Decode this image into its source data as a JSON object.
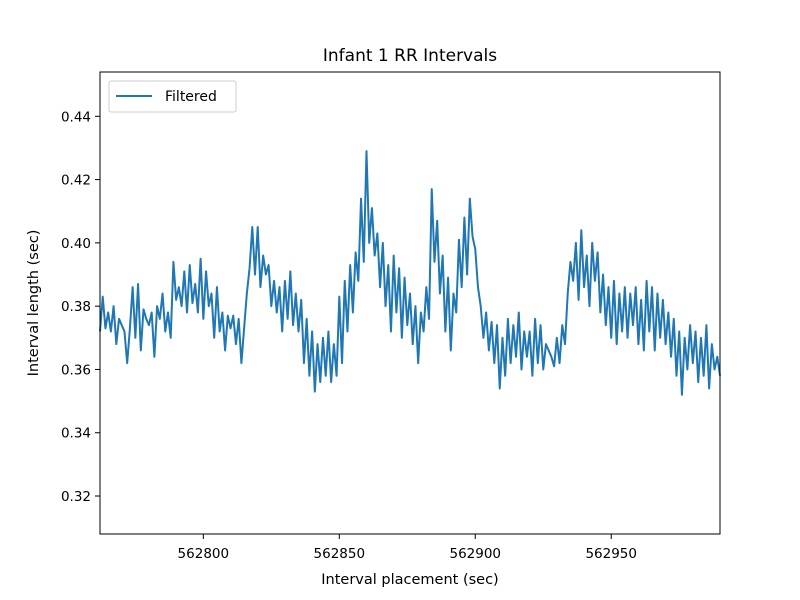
{
  "chart_data": {
    "type": "line",
    "title": "Infant 1 RR Intervals",
    "xlabel": "Interval placement (sec)",
    "ylabel": "Interval length (sec)",
    "xlim": [
      562762,
      562990
    ],
    "ylim": [
      0.308,
      0.454
    ],
    "xticks": [
      562800,
      562850,
      562900,
      562950
    ],
    "yticks": [
      0.32,
      0.34,
      0.36,
      0.38,
      0.4,
      0.42,
      0.44
    ],
    "grid": false,
    "legend_position": "top-left",
    "series": [
      {
        "name": "Filtered",
        "color": "#1f77b4",
        "points": [
          [
            562762,
            0.372
          ],
          [
            562763,
            0.383
          ],
          [
            562764,
            0.373
          ],
          [
            562765,
            0.378
          ],
          [
            562766,
            0.372
          ],
          [
            562767,
            0.38
          ],
          [
            562768,
            0.368
          ],
          [
            562769,
            0.376
          ],
          [
            562770,
            0.374
          ],
          [
            562771,
            0.372
          ],
          [
            562772,
            0.362
          ],
          [
            562773,
            0.373
          ],
          [
            562774,
            0.386
          ],
          [
            562775,
            0.37
          ],
          [
            562776,
            0.387
          ],
          [
            562777,
            0.366
          ],
          [
            562778,
            0.379
          ],
          [
            562779,
            0.376
          ],
          [
            562780,
            0.374
          ],
          [
            562781,
            0.378
          ],
          [
            562782,
            0.364
          ],
          [
            562783,
            0.38
          ],
          [
            562784,
            0.376
          ],
          [
            562785,
            0.384
          ],
          [
            562786,
            0.372
          ],
          [
            562787,
            0.378
          ],
          [
            562788,
            0.37
          ],
          [
            562789,
            0.394
          ],
          [
            562790,
            0.382
          ],
          [
            562791,
            0.386
          ],
          [
            562792,
            0.38
          ],
          [
            562793,
            0.391
          ],
          [
            562794,
            0.378
          ],
          [
            562795,
            0.393
          ],
          [
            562796,
            0.381
          ],
          [
            562797,
            0.387
          ],
          [
            562798,
            0.378
          ],
          [
            562799,
            0.395
          ],
          [
            562800,
            0.376
          ],
          [
            562801,
            0.391
          ],
          [
            562802,
            0.38
          ],
          [
            562803,
            0.384
          ],
          [
            562804,
            0.37
          ],
          [
            562805,
            0.386
          ],
          [
            562806,
            0.372
          ],
          [
            562807,
            0.378
          ],
          [
            562808,
            0.366
          ],
          [
            562809,
            0.377
          ],
          [
            562810,
            0.373
          ],
          [
            562811,
            0.377
          ],
          [
            562812,
            0.368
          ],
          [
            562813,
            0.376
          ],
          [
            562814,
            0.362
          ],
          [
            562815,
            0.373
          ],
          [
            562816,
            0.384
          ],
          [
            562817,
            0.392
          ],
          [
            562818,
            0.405
          ],
          [
            562819,
            0.39
          ],
          [
            562820,
            0.405
          ],
          [
            562821,
            0.386
          ],
          [
            562822,
            0.396
          ],
          [
            562823,
            0.39
          ],
          [
            562824,
            0.393
          ],
          [
            562825,
            0.38
          ],
          [
            562826,
            0.388
          ],
          [
            562827,
            0.378
          ],
          [
            562828,
            0.386
          ],
          [
            562829,
            0.372
          ],
          [
            562830,
            0.388
          ],
          [
            562831,
            0.376
          ],
          [
            562832,
            0.391
          ],
          [
            562833,
            0.374
          ],
          [
            562834,
            0.384
          ],
          [
            562835,
            0.372
          ],
          [
            562836,
            0.382
          ],
          [
            562837,
            0.362
          ],
          [
            562838,
            0.376
          ],
          [
            562839,
            0.358
          ],
          [
            562840,
            0.372
          ],
          [
            562841,
            0.353
          ],
          [
            562842,
            0.368
          ],
          [
            562843,
            0.356
          ],
          [
            562844,
            0.37
          ],
          [
            562845,
            0.358
          ],
          [
            562846,
            0.372
          ],
          [
            562847,
            0.356
          ],
          [
            562848,
            0.368
          ],
          [
            562849,
            0.358
          ],
          [
            562850,
            0.383
          ],
          [
            562851,
            0.362
          ],
          [
            562852,
            0.388
          ],
          [
            562853,
            0.372
          ],
          [
            562854,
            0.393
          ],
          [
            562855,
            0.378
          ],
          [
            562856,
            0.397
          ],
          [
            562857,
            0.388
          ],
          [
            562858,
            0.414
          ],
          [
            562859,
            0.394
          ],
          [
            562860,
            0.429
          ],
          [
            562861,
            0.4
          ],
          [
            562862,
            0.411
          ],
          [
            562863,
            0.396
          ],
          [
            562864,
            0.403
          ],
          [
            562865,
            0.386
          ],
          [
            562866,
            0.4
          ],
          [
            562867,
            0.38
          ],
          [
            562868,
            0.393
          ],
          [
            562869,
            0.372
          ],
          [
            562870,
            0.396
          ],
          [
            562871,
            0.378
          ],
          [
            562872,
            0.392
          ],
          [
            562873,
            0.37
          ],
          [
            562874,
            0.389
          ],
          [
            562875,
            0.374
          ],
          [
            562876,
            0.384
          ],
          [
            562877,
            0.368
          ],
          [
            562878,
            0.38
          ],
          [
            562879,
            0.362
          ],
          [
            562880,
            0.378
          ],
          [
            562881,
            0.372
          ],
          [
            562882,
            0.386
          ],
          [
            562883,
            0.376
          ],
          [
            562884,
            0.417
          ],
          [
            562885,
            0.394
          ],
          [
            562886,
            0.407
          ],
          [
            562887,
            0.384
          ],
          [
            562888,
            0.396
          ],
          [
            562889,
            0.372
          ],
          [
            562890,
            0.389
          ],
          [
            562891,
            0.366
          ],
          [
            562892,
            0.384
          ],
          [
            562893,
            0.378
          ],
          [
            562894,
            0.401
          ],
          [
            562895,
            0.386
          ],
          [
            562896,
            0.408
          ],
          [
            562897,
            0.39
          ],
          [
            562898,
            0.414
          ],
          [
            562899,
            0.402
          ],
          [
            562900,
            0.398
          ],
          [
            562901,
            0.386
          ],
          [
            562902,
            0.38
          ],
          [
            562903,
            0.37
          ],
          [
            562904,
            0.378
          ],
          [
            562905,
            0.366
          ],
          [
            562906,
            0.375
          ],
          [
            562907,
            0.362
          ],
          [
            562908,
            0.374
          ],
          [
            562909,
            0.354
          ],
          [
            562910,
            0.37
          ],
          [
            562911,
            0.358
          ],
          [
            562912,
            0.376
          ],
          [
            562913,
            0.362
          ],
          [
            562914,
            0.374
          ],
          [
            562915,
            0.364
          ],
          [
            562916,
            0.378
          ],
          [
            562917,
            0.36
          ],
          [
            562918,
            0.372
          ],
          [
            562919,
            0.364
          ],
          [
            562920,
            0.372
          ],
          [
            562921,
            0.358
          ],
          [
            562922,
            0.376
          ],
          [
            562923,
            0.362
          ],
          [
            562924,
            0.374
          ],
          [
            562925,
            0.36
          ],
          [
            562926,
            0.368
          ],
          [
            562927,
            0.366
          ],
          [
            562928,
            0.364
          ],
          [
            562929,
            0.361
          ],
          [
            562930,
            0.37
          ],
          [
            562931,
            0.362
          ],
          [
            562932,
            0.374
          ],
          [
            562933,
            0.368
          ],
          [
            562934,
            0.384
          ],
          [
            562935,
            0.394
          ],
          [
            562936,
            0.388
          ],
          [
            562937,
            0.4
          ],
          [
            562938,
            0.382
          ],
          [
            562939,
            0.404
          ],
          [
            562940,
            0.386
          ],
          [
            562941,
            0.396
          ],
          [
            562942,
            0.38
          ],
          [
            562943,
            0.4
          ],
          [
            562944,
            0.388
          ],
          [
            562945,
            0.397
          ],
          [
            562946,
            0.378
          ],
          [
            562947,
            0.39
          ],
          [
            562948,
            0.374
          ],
          [
            562949,
            0.386
          ],
          [
            562950,
            0.37
          ],
          [
            562951,
            0.388
          ],
          [
            562952,
            0.368
          ],
          [
            562953,
            0.384
          ],
          [
            562954,
            0.372
          ],
          [
            562955,
            0.386
          ],
          [
            562956,
            0.37
          ],
          [
            562957,
            0.384
          ],
          [
            562958,
            0.374
          ],
          [
            562959,
            0.386
          ],
          [
            562960,
            0.368
          ],
          [
            562961,
            0.382
          ],
          [
            562962,
            0.366
          ],
          [
            562963,
            0.388
          ],
          [
            562964,
            0.372
          ],
          [
            562965,
            0.386
          ],
          [
            562966,
            0.366
          ],
          [
            562967,
            0.384
          ],
          [
            562968,
            0.37
          ],
          [
            562969,
            0.382
          ],
          [
            562970,
            0.368
          ],
          [
            562971,
            0.378
          ],
          [
            562972,
            0.364
          ],
          [
            562973,
            0.376
          ],
          [
            562974,
            0.358
          ],
          [
            562975,
            0.372
          ],
          [
            562976,
            0.352
          ],
          [
            562977,
            0.37
          ],
          [
            562978,
            0.36
          ],
          [
            562979,
            0.374
          ],
          [
            562980,
            0.362
          ],
          [
            562981,
            0.372
          ],
          [
            562982,
            0.356
          ],
          [
            562983,
            0.37
          ],
          [
            562984,
            0.358
          ],
          [
            562985,
            0.374
          ],
          [
            562986,
            0.354
          ],
          [
            562987,
            0.368
          ],
          [
            562988,
            0.36
          ],
          [
            562989,
            0.364
          ],
          [
            562990,
            0.358
          ]
        ]
      }
    ]
  }
}
